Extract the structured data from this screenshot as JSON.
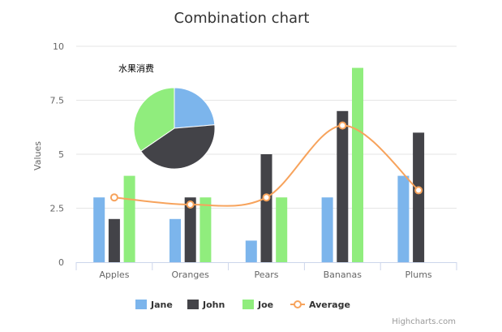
{
  "chart_data": {
    "type": "bar",
    "title": "Combination chart",
    "ylabel": "Values",
    "xlabel": "",
    "ylim": [
      0,
      10
    ],
    "yticks": [
      "0",
      "2.5",
      "5",
      "7.5",
      "10"
    ],
    "categories": [
      "Apples",
      "Oranges",
      "Pears",
      "Bananas",
      "Plums"
    ],
    "series": [
      {
        "name": "Jane",
        "type": "bar",
        "color": "#7cb5ec",
        "values": [
          3,
          2,
          1,
          3,
          4
        ]
      },
      {
        "name": "John",
        "type": "bar",
        "color": "#434348",
        "values": [
          2,
          3,
          5,
          7,
          6
        ]
      },
      {
        "name": "Joe",
        "type": "bar",
        "color": "#90ed7d",
        "values": [
          4,
          3,
          3,
          9,
          0
        ]
      },
      {
        "name": "Average",
        "type": "spline",
        "color": "#f7a35c",
        "values": [
          3,
          2.67,
          3,
          6.33,
          3.33
        ]
      }
    ],
    "pie": {
      "title": "水果消费",
      "slices": [
        {
          "name": "Jane",
          "value": 13,
          "color": "#7cb5ec"
        },
        {
          "name": "John",
          "value": 23,
          "color": "#434348"
        },
        {
          "name": "Joe",
          "value": 19,
          "color": "#90ed7d"
        }
      ]
    },
    "legend_position": "bottom-center",
    "grid": true,
    "credits": "Highcharts.com"
  }
}
